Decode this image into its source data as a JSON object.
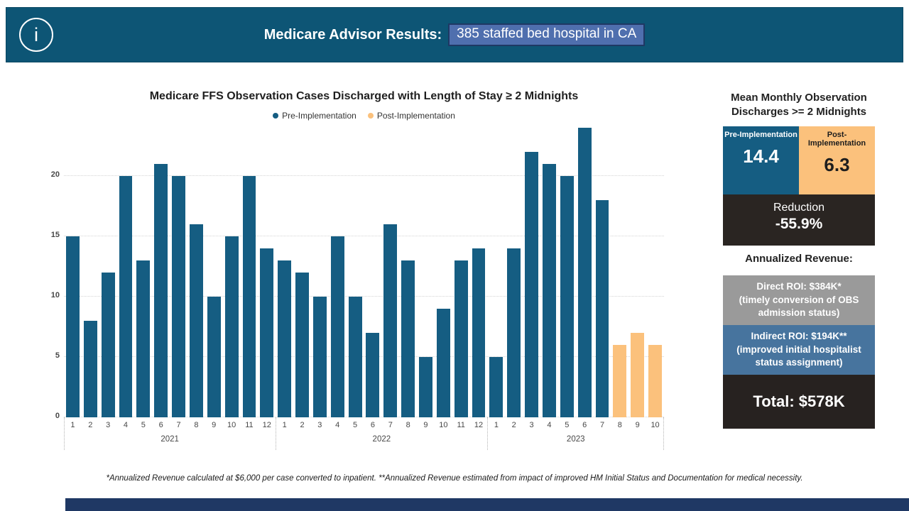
{
  "header": {
    "title": "Medicare Advisor Results:",
    "highlight_text": "385 staffed bed hospital in CA",
    "info_glyph": "i"
  },
  "chart_data": {
    "type": "bar",
    "title": "Medicare FFS Observation Cases Discharged with Length of Stay ≥ 2 Midnights",
    "xlabel": "",
    "ylabel": "",
    "ylim": [
      0,
      24
    ],
    "yticks": [
      0,
      5,
      10,
      15,
      20
    ],
    "grid": "dotted-horizontal",
    "legend_position": "top-center",
    "series": [
      {
        "name": "Pre-Implementation",
        "color": "#155d82"
      },
      {
        "name": "Post-Implementation",
        "color": "#fbc17c"
      }
    ],
    "x_year_groups": [
      {
        "year": "2021",
        "months": [
          1,
          2,
          3,
          4,
          5,
          6,
          7,
          8,
          9,
          10,
          11,
          12
        ],
        "values": [
          15,
          8,
          12,
          20,
          13,
          21,
          20,
          16,
          10,
          15,
          20,
          14
        ],
        "series": "Pre-Implementation"
      },
      {
        "year": "2022",
        "months": [
          1,
          2,
          3,
          4,
          5,
          6,
          7,
          8,
          9,
          10,
          11,
          12
        ],
        "values": [
          13,
          12,
          10,
          15,
          10,
          7,
          16,
          13,
          5,
          9,
          13,
          14
        ],
        "series": "Pre-Implementation"
      },
      {
        "year": "2023",
        "months": [
          1,
          2,
          3,
          4,
          5,
          6,
          7,
          8,
          9,
          10
        ],
        "values": [
          5,
          14,
          22,
          21,
          20,
          24,
          18,
          6,
          7,
          6
        ],
        "series_per_month": [
          "Pre-Implementation",
          "Pre-Implementation",
          "Pre-Implementation",
          "Pre-Implementation",
          "Pre-Implementation",
          "Pre-Implementation",
          "Pre-Implementation",
          "Post-Implementation",
          "Post-Implementation",
          "Post-Implementation"
        ]
      }
    ]
  },
  "panel": {
    "mean": {
      "title": "Mean Monthly Observation Discharges >= 2 Midnights",
      "pre_label": "Pre-Implementation",
      "pre_value": "14.4",
      "post_label": "Post-Implementation",
      "post_value": "6.3",
      "reduction_label": "Reduction",
      "reduction_value": "-55.9%"
    },
    "revenue": {
      "title": "Annualized Revenue:",
      "direct_line1": "Direct ROI: $384K*",
      "direct_line2": "(timely conversion of OBS admission status)",
      "indirect_line1": "Indirect ROI: $194K**",
      "indirect_line2": "(improved initial hospitalist status assignment)",
      "total": "Total: $578K"
    }
  },
  "footnote": "*Annualized Revenue calculated at $6,000 per case converted to inpatient.  **Annualized Revenue estimated from impact of improved HM Initial Status and Documentation for medical necessity.",
  "colors": {
    "banner": "#0d5575",
    "pre_bar": "#155d82",
    "post_bar": "#fbc17c",
    "highlight_bg": "#4f6fae",
    "highlight_border": "#1f3864",
    "reduction_bg": "#2a2522",
    "direct_bg": "#9a9a9a",
    "indirect_bg": "#47749e",
    "total_bg": "#272220",
    "bottom_bar": "#1f3864"
  }
}
